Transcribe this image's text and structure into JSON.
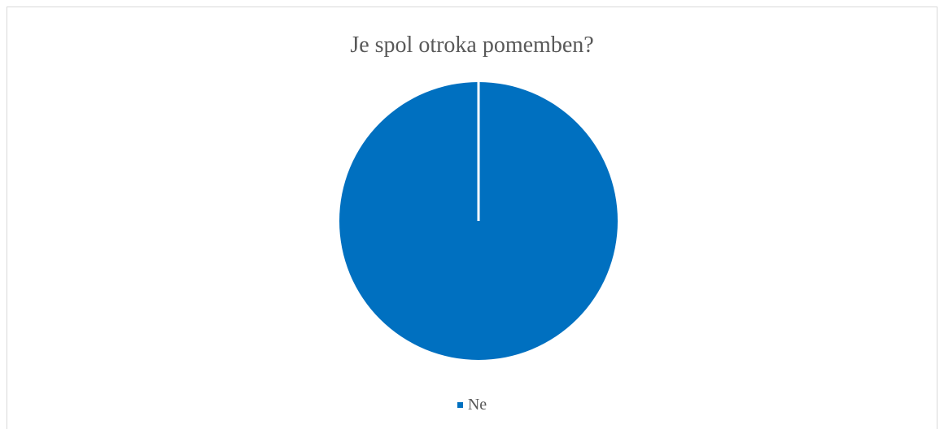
{
  "chart_data": {
    "type": "pie",
    "title": "Je spol otroka pomemben?",
    "categories": [
      "Ne"
    ],
    "values": [
      100
    ],
    "colors": [
      "#0070C0"
    ],
    "legend_position": "bottom",
    "grid": false
  }
}
